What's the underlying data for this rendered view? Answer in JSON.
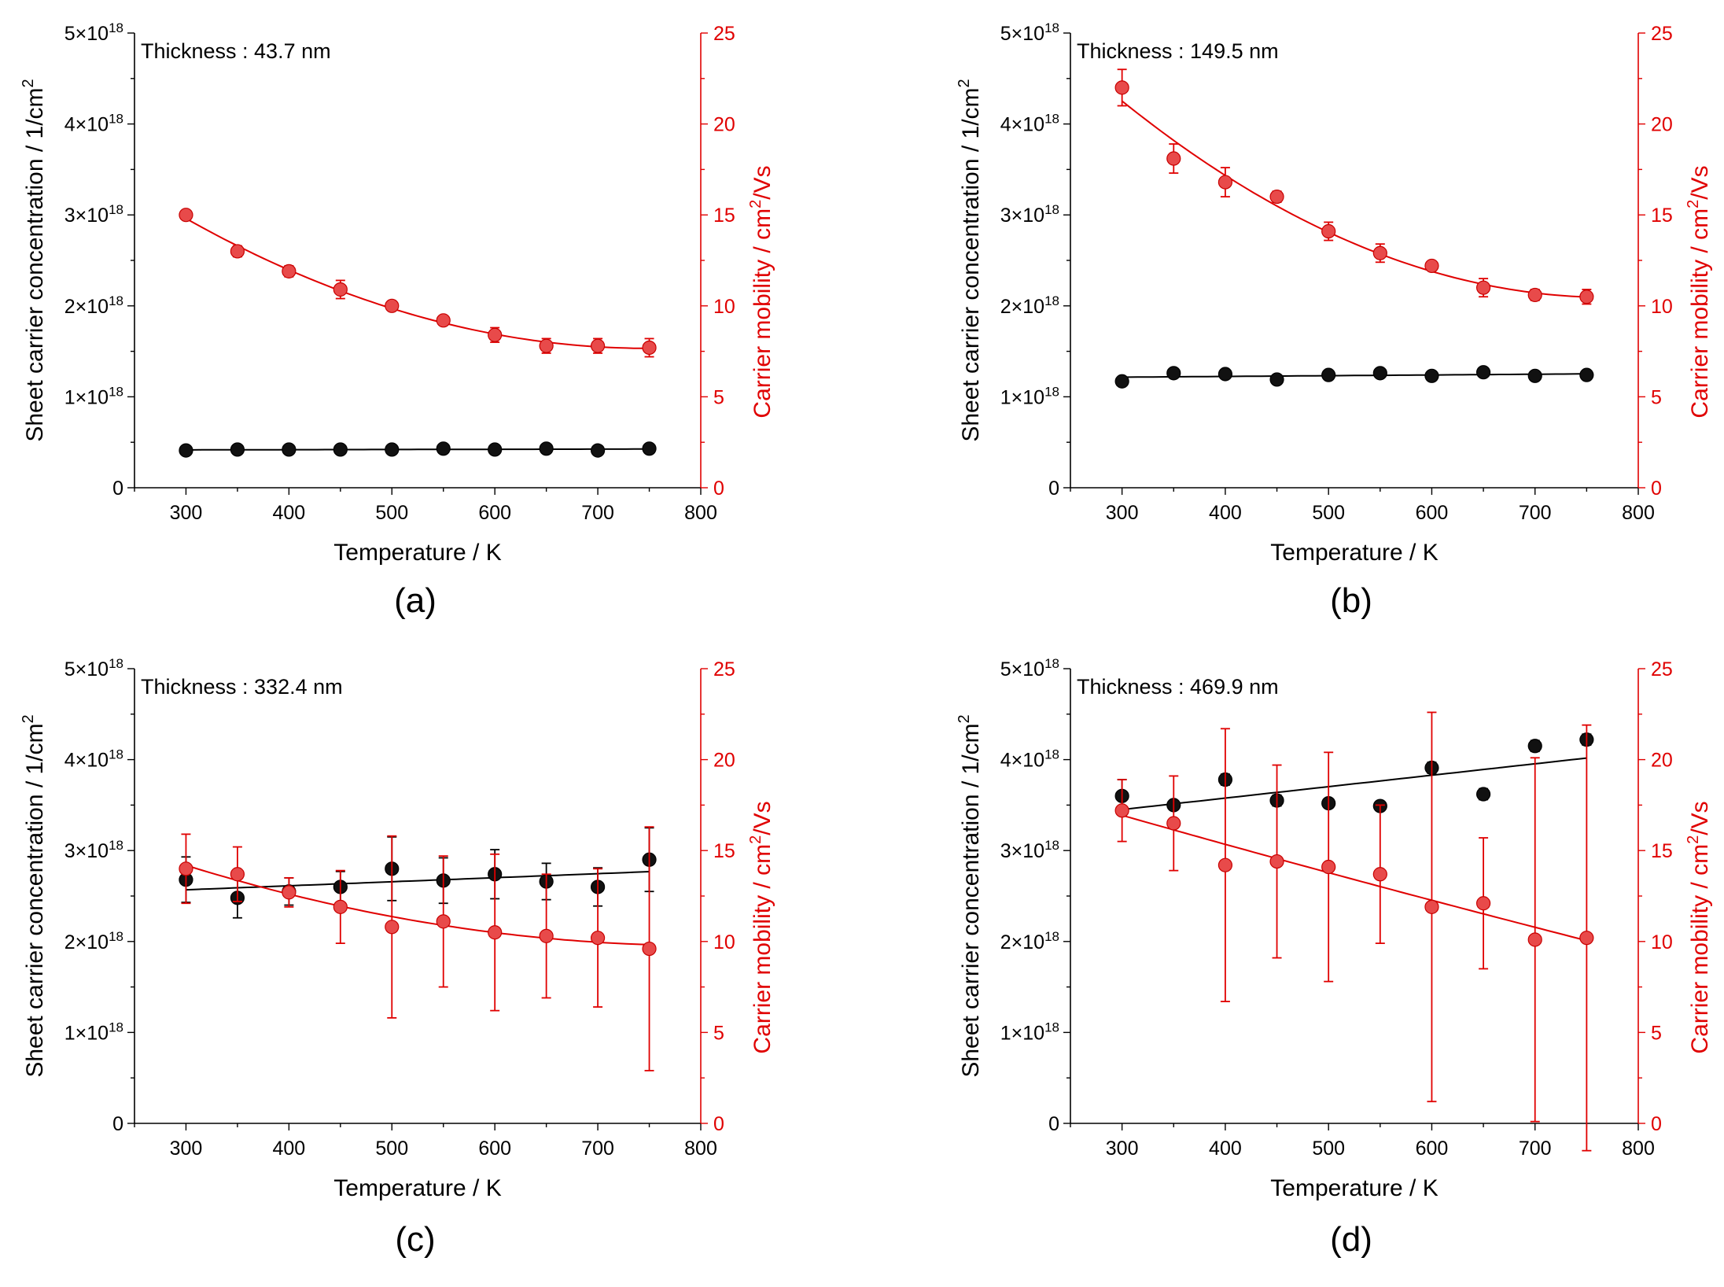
{
  "chart_data": [
    {
      "type": "scatter",
      "panel_label": "(a)",
      "annotation": "Thickness : 43.7 nm",
      "xlabel": "Temperature / K",
      "ylabel_left": "Sheet carrier concentration / 1/cm",
      "ylabel_left_sup": "2",
      "ylabel_right": "Carrier mobility / cm",
      "ylabel_right_sup": "2",
      "ylabel_right_tail": "/Vs",
      "xlim": [
        250,
        800
      ],
      "xticks": [
        300,
        400,
        500,
        600,
        700,
        800
      ],
      "ylim_left": [
        0,
        5e+18
      ],
      "yticks_left": [
        {
          "base": "0",
          "exp": ""
        },
        {
          "base": "1×10",
          "exp": "18"
        },
        {
          "base": "2×10",
          "exp": "18"
        },
        {
          "base": "3×10",
          "exp": "18"
        },
        {
          "base": "4×10",
          "exp": "18"
        },
        {
          "base": "5×10",
          "exp": "18"
        }
      ],
      "ylim_right": [
        0,
        25
      ],
      "yticks_right": [
        "0",
        "5",
        "10",
        "15",
        "20",
        "25"
      ],
      "x": [
        300,
        350,
        400,
        450,
        500,
        550,
        600,
        650,
        700,
        750
      ],
      "series": [
        {
          "name": "Sheet carrier concentration",
          "axis": "left",
          "color": "#000000",
          "values": [
            4.1e+17,
            4.2e+17,
            4.2e+17,
            4.2e+17,
            4.2e+17,
            4.3e+17,
            4.2e+17,
            4.3e+17,
            4.1e+17,
            4.3e+17
          ],
          "errors": [
            3e+16,
            2e+16,
            2e+16,
            2e+16,
            2e+16,
            2e+16,
            2e+16,
            2e+16,
            2e+16,
            2e+16
          ],
          "fit": "linear"
        },
        {
          "name": "Carrier mobility",
          "axis": "right",
          "color": "#e00000",
          "values": [
            15.0,
            13.0,
            11.9,
            10.9,
            10.0,
            9.2,
            8.4,
            7.8,
            7.8,
            7.7
          ],
          "errors": [
            0.2,
            0.3,
            0.3,
            0.5,
            0.2,
            0.2,
            0.4,
            0.4,
            0.4,
            0.5
          ],
          "fit": "quadratic"
        }
      ]
    },
    {
      "type": "scatter",
      "panel_label": "(b)",
      "annotation": "Thickness : 149.5 nm",
      "xlabel": "Temperature / K",
      "ylabel_left": "Sheet carrier concentration / 1/cm",
      "ylabel_left_sup": "2",
      "ylabel_right": "Carrier mobility / cm",
      "ylabel_right_sup": "2",
      "ylabel_right_tail": "/Vs",
      "xlim": [
        250,
        800
      ],
      "xticks": [
        300,
        400,
        500,
        600,
        700,
        800
      ],
      "ylim_left": [
        0,
        5e+18
      ],
      "yticks_left": [
        {
          "base": "0",
          "exp": ""
        },
        {
          "base": "1×10",
          "exp": "18"
        },
        {
          "base": "2×10",
          "exp": "18"
        },
        {
          "base": "3×10",
          "exp": "18"
        },
        {
          "base": "4×10",
          "exp": "18"
        },
        {
          "base": "5×10",
          "exp": "18"
        }
      ],
      "ylim_right": [
        0,
        25
      ],
      "yticks_right": [
        "0",
        "5",
        "10",
        "15",
        "20",
        "25"
      ],
      "x": [
        300,
        350,
        400,
        450,
        500,
        550,
        600,
        650,
        700,
        750
      ],
      "series": [
        {
          "name": "Sheet carrier concentration",
          "axis": "left",
          "color": "#000000",
          "values": [
            1.17e+18,
            1.26e+18,
            1.25e+18,
            1.19e+18,
            1.24e+18,
            1.26e+18,
            1.23e+18,
            1.27e+18,
            1.23e+18,
            1.24e+18
          ],
          "errors": [
            4e+16,
            4e+16,
            4e+16,
            3e+16,
            3e+16,
            3e+16,
            3e+16,
            4e+16,
            3e+16,
            3e+16
          ],
          "fit": "linear"
        },
        {
          "name": "Carrier mobility",
          "axis": "right",
          "color": "#e00000",
          "values": [
            22.0,
            18.1,
            16.8,
            16.0,
            14.1,
            12.9,
            12.2,
            11.0,
            10.6,
            10.5
          ],
          "errors": [
            1.0,
            0.8,
            0.8,
            0.3,
            0.5,
            0.5,
            0.2,
            0.5,
            0.3,
            0.4
          ],
          "fit": "quadratic"
        }
      ]
    },
    {
      "type": "scatter",
      "panel_label": "(c)",
      "annotation": "Thickness : 332.4 nm",
      "xlabel": "Temperature / K",
      "ylabel_left": "Sheet carrier concentration / 1/cm",
      "ylabel_left_sup": "2",
      "ylabel_right": "Carrier mobility / cm",
      "ylabel_right_sup": "2",
      "ylabel_right_tail": "/Vs",
      "xlim": [
        250,
        800
      ],
      "xticks": [
        300,
        400,
        500,
        600,
        700,
        800
      ],
      "ylim_left": [
        0,
        5e+18
      ],
      "yticks_left": [
        {
          "base": "0",
          "exp": ""
        },
        {
          "base": "1×10",
          "exp": "18"
        },
        {
          "base": "2×10",
          "exp": "18"
        },
        {
          "base": "3×10",
          "exp": "18"
        },
        {
          "base": "4×10",
          "exp": "18"
        },
        {
          "base": "5×10",
          "exp": "18"
        }
      ],
      "ylim_right": [
        0,
        25
      ],
      "yticks_right": [
        "0",
        "5",
        "10",
        "15",
        "20",
        "25"
      ],
      "x": [
        300,
        350,
        400,
        450,
        500,
        550,
        600,
        650,
        700,
        750
      ],
      "series": [
        {
          "name": "Sheet carrier concentration",
          "axis": "left",
          "color": "#000000",
          "values": [
            2.68e+18,
            2.48e+18,
            2.55e+18,
            2.6e+18,
            2.8e+18,
            2.67e+18,
            2.74e+18,
            2.66e+18,
            2.6e+18,
            2.9e+18
          ],
          "errors": [
            2.5e+17,
            2.2e+17,
            1.5e+17,
            1.7e+17,
            3.5e+17,
            2.5e+17,
            2.7e+17,
            2e+17,
            2.1e+17,
            3.5e+17
          ],
          "fit": "linear"
        },
        {
          "name": "Carrier mobility",
          "axis": "right",
          "color": "#e00000",
          "values": [
            14.0,
            13.7,
            12.7,
            11.9,
            10.8,
            11.1,
            10.5,
            10.3,
            10.2,
            9.6
          ],
          "errors": [
            1.9,
            1.5,
            0.8,
            2.0,
            5.0,
            3.6,
            4.3,
            3.4,
            3.8,
            6.7
          ],
          "fit": "quadratic"
        }
      ]
    },
    {
      "type": "scatter",
      "panel_label": "(d)",
      "annotation": "Thickness : 469.9 nm",
      "xlabel": "Temperature / K",
      "ylabel_left": "Sheet carrier concentration / 1/cm",
      "ylabel_left_sup": "2",
      "ylabel_right": "Carrier mobility / cm",
      "ylabel_right_sup": "2",
      "ylabel_right_tail": "/Vs",
      "xlim": [
        250,
        800
      ],
      "xticks": [
        300,
        400,
        500,
        600,
        700,
        800
      ],
      "ylim_left": [
        0,
        5e+18
      ],
      "yticks_left": [
        {
          "base": "0",
          "exp": ""
        },
        {
          "base": "1×10",
          "exp": "18"
        },
        {
          "base": "2×10",
          "exp": "18"
        },
        {
          "base": "3×10",
          "exp": "18"
        },
        {
          "base": "4×10",
          "exp": "18"
        },
        {
          "base": "5×10",
          "exp": "18"
        }
      ],
      "ylim_right": [
        0,
        25
      ],
      "yticks_right": [
        "0",
        "5",
        "10",
        "15",
        "20",
        "25"
      ],
      "x": [
        300,
        350,
        400,
        450,
        500,
        550,
        600,
        650,
        700,
        750
      ],
      "series": [
        {
          "name": "Sheet carrier concentration",
          "axis": "left",
          "color": "#000000",
          "values": [
            3.6e+18,
            3.5e+18,
            3.78e+18,
            3.55e+18,
            3.52e+18,
            3.49e+18,
            3.91e+18,
            3.62e+18,
            4.15e+18,
            4.22e+18
          ],
          "errors": [
            1.8e+17,
            5e+16,
            6e+16,
            6e+16,
            5e+16,
            5e+16,
            6e+16,
            6e+16,
            6e+16,
            6e+16
          ],
          "fit": "linear"
        },
        {
          "name": "Carrier mobility",
          "axis": "right",
          "color": "#e00000",
          "values": [
            17.2,
            16.5,
            14.2,
            14.4,
            14.1,
            13.7,
            11.9,
            12.1,
            10.1,
            10.2
          ],
          "errors": [
            1.7,
            2.6,
            7.5,
            5.3,
            6.3,
            3.8,
            10.7,
            3.6,
            10.0,
            11.7
          ],
          "fit": "quadratic"
        }
      ]
    }
  ]
}
